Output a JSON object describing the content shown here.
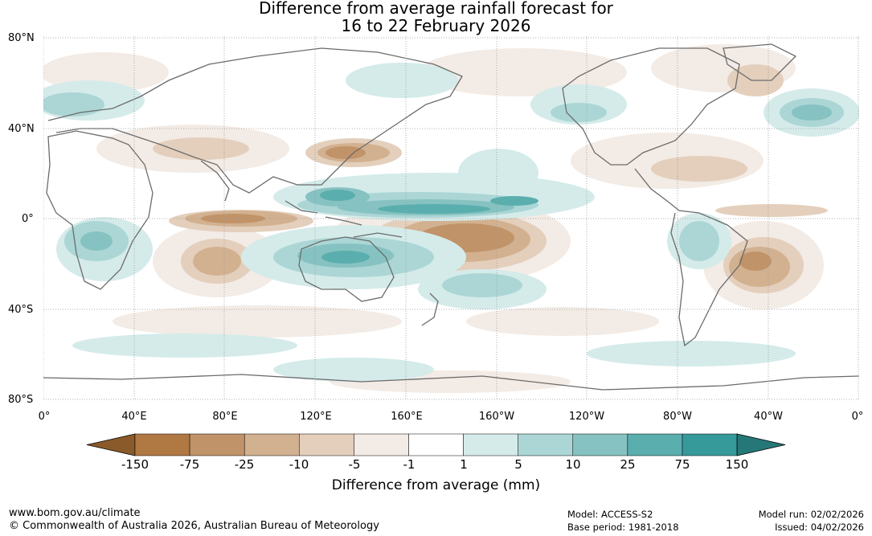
{
  "title": {
    "line1": "Difference from average rainfall forecast for",
    "line2": "16 to 22 February 2026"
  },
  "map": {
    "lat_labels": [
      "80°N",
      "40°N",
      "0°",
      "40°S",
      "80°S"
    ],
    "lon_labels": [
      "0°",
      "40°E",
      "80°E",
      "120°E",
      "160°E",
      "160°W",
      "120°W",
      "80°W",
      "40°W",
      "0°"
    ]
  },
  "colorbar": {
    "ticks": [
      "-150",
      "-75",
      "-25",
      "-10",
      "-5",
      "-1",
      "1",
      "5",
      "10",
      "25",
      "75",
      "150"
    ],
    "colors": [
      "#8a5a2b",
      "#b07842",
      "#c19368",
      "#d2b190",
      "#e3cfbc",
      "#f3ebe5",
      "#ffffff",
      "#d4ebea",
      "#abd6d5",
      "#86c2c1",
      "#5aaeae",
      "#36999a",
      "#267878"
    ],
    "label": "Difference from average (mm)"
  },
  "footer": {
    "website": "www.bom.gov.au/climate",
    "copyright": "© Commonwealth of Australia 2026, Australian Bureau of Meteorology",
    "model": "Model: ACCESS-S2",
    "base_period": "Base period: 1981-2018",
    "model_run": "Model run: 02/02/2026",
    "issued": "Issued: 04/02/2026"
  }
}
